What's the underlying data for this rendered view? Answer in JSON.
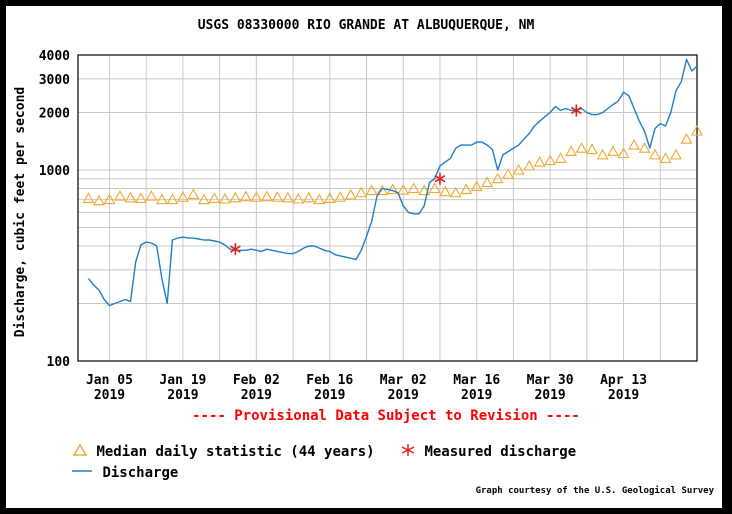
{
  "chart_data": {
    "type": "line",
    "title": "USGS 08330000 RIO GRANDE AT ALBUQUERQUE, NM",
    "ylabel": "Discharge, cubic feet per second",
    "xlabel": "",
    "y_scale": "log",
    "ylim": [
      100,
      4000
    ],
    "xlim": [
      "2018-12-30",
      "2019-04-27"
    ],
    "y_ticks": [
      100,
      1000,
      2000,
      3000,
      4000
    ],
    "x_ticks": [
      {
        "date": "2019-01-05",
        "label": "Jan 05",
        "year": "2019"
      },
      {
        "date": "2019-01-19",
        "label": "Jan 19",
        "year": "2019"
      },
      {
        "date": "2019-02-02",
        "label": "Feb 02",
        "year": "2019"
      },
      {
        "date": "2019-02-16",
        "label": "Feb 16",
        "year": "2019"
      },
      {
        "date": "2019-03-02",
        "label": "Mar 02",
        "year": "2019"
      },
      {
        "date": "2019-03-16",
        "label": "Mar 16",
        "year": "2019"
      },
      {
        "date": "2019-03-30",
        "label": "Mar 30",
        "year": "2019"
      },
      {
        "date": "2019-04-13",
        "label": "Apr 13",
        "year": "2019"
      }
    ],
    "grid": true,
    "legend_placement": "bottom",
    "series": [
      {
        "name": "Discharge",
        "color": "#1f7ec8",
        "points": [
          [
            "2019-01-01",
            270
          ],
          [
            "2019-01-02",
            250
          ],
          [
            "2019-01-03",
            235
          ],
          [
            "2019-01-04",
            210
          ],
          [
            "2019-01-05",
            195
          ],
          [
            "2019-01-06",
            200
          ],
          [
            "2019-01-07",
            205
          ],
          [
            "2019-01-08",
            210
          ],
          [
            "2019-01-09",
            205
          ],
          [
            "2019-01-10",
            330
          ],
          [
            "2019-01-11",
            405
          ],
          [
            "2019-01-12",
            420
          ],
          [
            "2019-01-13",
            415
          ],
          [
            "2019-01-14",
            400
          ],
          [
            "2019-01-15",
            270
          ],
          [
            "2019-01-16",
            200
          ],
          [
            "2019-01-17",
            430
          ],
          [
            "2019-01-18",
            440
          ],
          [
            "2019-01-19",
            445
          ],
          [
            "2019-01-20",
            440
          ],
          [
            "2019-01-21",
            440
          ],
          [
            "2019-01-22",
            435
          ],
          [
            "2019-01-23",
            430
          ],
          [
            "2019-01-24",
            430
          ],
          [
            "2019-01-25",
            425
          ],
          [
            "2019-01-26",
            420
          ],
          [
            "2019-01-27",
            405
          ],
          [
            "2019-01-28",
            385
          ],
          [
            "2019-01-29",
            380
          ],
          [
            "2019-01-30",
            380
          ],
          [
            "2019-01-31",
            380
          ],
          [
            "2019-02-01",
            385
          ],
          [
            "2019-02-02",
            380
          ],
          [
            "2019-02-03",
            375
          ],
          [
            "2019-02-04",
            385
          ],
          [
            "2019-02-05",
            380
          ],
          [
            "2019-02-06",
            375
          ],
          [
            "2019-02-07",
            370
          ],
          [
            "2019-02-08",
            365
          ],
          [
            "2019-02-09",
            365
          ],
          [
            "2019-02-10",
            375
          ],
          [
            "2019-02-11",
            390
          ],
          [
            "2019-02-12",
            400
          ],
          [
            "2019-02-13",
            400
          ],
          [
            "2019-02-14",
            390
          ],
          [
            "2019-02-15",
            380
          ],
          [
            "2019-02-16",
            375
          ],
          [
            "2019-02-17",
            360
          ],
          [
            "2019-02-18",
            355
          ],
          [
            "2019-02-19",
            350
          ],
          [
            "2019-02-20",
            345
          ],
          [
            "2019-02-21",
            340
          ],
          [
            "2019-02-22",
            380
          ],
          [
            "2019-02-23",
            450
          ],
          [
            "2019-02-24",
            540
          ],
          [
            "2019-02-25",
            730
          ],
          [
            "2019-02-26",
            800
          ],
          [
            "2019-02-27",
            790
          ],
          [
            "2019-02-28",
            780
          ],
          [
            "2019-03-01",
            760
          ],
          [
            "2019-03-02",
            650
          ],
          [
            "2019-03-03",
            600
          ],
          [
            "2019-03-04",
            590
          ],
          [
            "2019-03-05",
            590
          ],
          [
            "2019-03-06",
            650
          ],
          [
            "2019-03-07",
            860
          ],
          [
            "2019-03-08",
            900
          ],
          [
            "2019-03-09",
            1050
          ],
          [
            "2019-03-10",
            1100
          ],
          [
            "2019-03-11",
            1150
          ],
          [
            "2019-03-12",
            1300
          ],
          [
            "2019-03-13",
            1350
          ],
          [
            "2019-03-14",
            1350
          ],
          [
            "2019-03-15",
            1350
          ],
          [
            "2019-03-16",
            1400
          ],
          [
            "2019-03-17",
            1400
          ],
          [
            "2019-03-18",
            1350
          ],
          [
            "2019-03-19",
            1280
          ],
          [
            "2019-03-20",
            1000
          ],
          [
            "2019-03-21",
            1200
          ],
          [
            "2019-03-22",
            1250
          ],
          [
            "2019-03-23",
            1300
          ],
          [
            "2019-03-24",
            1350
          ],
          [
            "2019-03-25",
            1450
          ],
          [
            "2019-03-26",
            1550
          ],
          [
            "2019-03-27",
            1700
          ],
          [
            "2019-03-28",
            1800
          ],
          [
            "2019-03-29",
            1900
          ],
          [
            "2019-03-30",
            2000
          ],
          [
            "2019-03-31",
            2150
          ],
          [
            "2019-04-01",
            2050
          ],
          [
            "2019-04-02",
            2100
          ],
          [
            "2019-04-03",
            2050
          ],
          [
            "2019-04-04",
            2050
          ],
          [
            "2019-04-05",
            2100
          ],
          [
            "2019-04-06",
            2000
          ],
          [
            "2019-04-07",
            1950
          ],
          [
            "2019-04-08",
            1950
          ],
          [
            "2019-04-09",
            2000
          ],
          [
            "2019-04-10",
            2100
          ],
          [
            "2019-04-11",
            2200
          ],
          [
            "2019-04-12",
            2300
          ],
          [
            "2019-04-13",
            2550
          ],
          [
            "2019-04-14",
            2450
          ],
          [
            "2019-04-15",
            2100
          ],
          [
            "2019-04-16",
            1800
          ],
          [
            "2019-04-17",
            1600
          ],
          [
            "2019-04-18",
            1300
          ],
          [
            "2019-04-19",
            1650
          ],
          [
            "2019-04-20",
            1750
          ],
          [
            "2019-04-21",
            1700
          ],
          [
            "2019-04-22",
            2000
          ],
          [
            "2019-04-23",
            2600
          ],
          [
            "2019-04-24",
            2900
          ],
          [
            "2019-04-25",
            3800
          ],
          [
            "2019-04-26",
            3300
          ],
          [
            "2019-04-27",
            3500
          ]
        ]
      },
      {
        "name": "Median daily statistic (44 years)",
        "color": "#f0a830",
        "marker": "triangle",
        "points": [
          [
            "2019-01-01",
            710
          ],
          [
            "2019-01-03",
            690
          ],
          [
            "2019-01-05",
            700
          ],
          [
            "2019-01-07",
            730
          ],
          [
            "2019-01-09",
            715
          ],
          [
            "2019-01-11",
            710
          ],
          [
            "2019-01-13",
            730
          ],
          [
            "2019-01-15",
            700
          ],
          [
            "2019-01-17",
            700
          ],
          [
            "2019-01-19",
            720
          ],
          [
            "2019-01-21",
            745
          ],
          [
            "2019-01-23",
            700
          ],
          [
            "2019-01-25",
            710
          ],
          [
            "2019-01-27",
            705
          ],
          [
            "2019-01-29",
            715
          ],
          [
            "2019-01-31",
            725
          ],
          [
            "2019-02-02",
            720
          ],
          [
            "2019-02-04",
            725
          ],
          [
            "2019-02-06",
            720
          ],
          [
            "2019-02-08",
            715
          ],
          [
            "2019-02-10",
            705
          ],
          [
            "2019-02-12",
            715
          ],
          [
            "2019-02-14",
            700
          ],
          [
            "2019-02-16",
            710
          ],
          [
            "2019-02-18",
            720
          ],
          [
            "2019-02-20",
            740
          ],
          [
            "2019-02-22",
            760
          ],
          [
            "2019-02-24",
            780
          ],
          [
            "2019-02-26",
            780
          ],
          [
            "2019-02-28",
            790
          ],
          [
            "2019-03-02",
            785
          ],
          [
            "2019-03-04",
            800
          ],
          [
            "2019-03-06",
            780
          ],
          [
            "2019-03-08",
            800
          ],
          [
            "2019-03-10",
            770
          ],
          [
            "2019-03-12",
            760
          ],
          [
            "2019-03-14",
            790
          ],
          [
            "2019-03-16",
            820
          ],
          [
            "2019-03-18",
            860
          ],
          [
            "2019-03-20",
            900
          ],
          [
            "2019-03-22",
            950
          ],
          [
            "2019-03-24",
            1000
          ],
          [
            "2019-03-26",
            1050
          ],
          [
            "2019-03-28",
            1100
          ],
          [
            "2019-03-30",
            1120
          ],
          [
            "2019-04-01",
            1150
          ],
          [
            "2019-04-03",
            1250
          ],
          [
            "2019-04-05",
            1300
          ],
          [
            "2019-04-07",
            1280
          ],
          [
            "2019-04-09",
            1200
          ],
          [
            "2019-04-11",
            1250
          ],
          [
            "2019-04-13",
            1220
          ],
          [
            "2019-04-15",
            1350
          ],
          [
            "2019-04-17",
            1300
          ],
          [
            "2019-04-19",
            1200
          ],
          [
            "2019-04-21",
            1150
          ],
          [
            "2019-04-23",
            1200
          ],
          [
            "2019-04-25",
            1450
          ],
          [
            "2019-04-27",
            1600
          ]
        ]
      },
      {
        "name": "Measured discharge",
        "color": "#e0201c",
        "marker": "asterisk",
        "points": [
          [
            "2019-01-29",
            385
          ],
          [
            "2019-03-09",
            900
          ],
          [
            "2019-04-04",
            2050
          ]
        ]
      }
    ]
  },
  "notice": {
    "text": "---- Provisional Data Subject to Revision ----",
    "color": "#ff0000"
  },
  "legend": {
    "median": "Median daily statistic (44 years)",
    "measured": "Measured discharge",
    "discharge": "Discharge"
  },
  "credit": "Graph courtesy of the U.S. Geological Survey"
}
